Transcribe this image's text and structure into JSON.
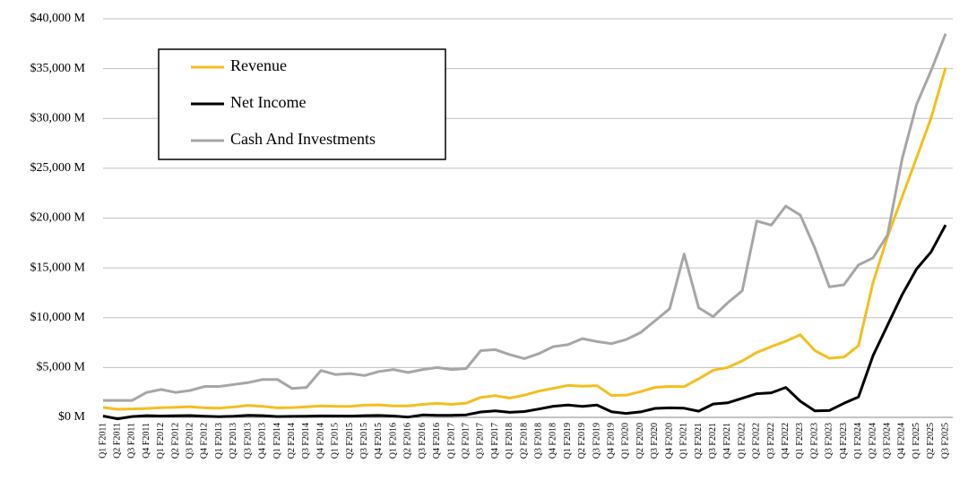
{
  "chart_data": {
    "type": "line",
    "categories": [
      "Q1 F2011",
      "Q2 F2011",
      "Q3 F2011",
      "Q4 F2011",
      "Q1 F2012",
      "Q2 F2012",
      "Q3 F2012",
      "Q4 F2012",
      "Q1 F2013",
      "Q2 F2013",
      "Q3 F2013",
      "Q4 F2013",
      "Q1 F2014",
      "Q2 F2014",
      "Q3 F2014",
      "Q4 F2014",
      "Q1 F2015",
      "Q2 F2015",
      "Q3 F2015",
      "Q4 F2015",
      "Q1 F2016",
      "Q2 F2016",
      "Q3 F2016",
      "Q4 F2016",
      "Q1 F2017",
      "Q2 F2017",
      "Q3 F2017",
      "Q4 F2017",
      "Q1 F2018",
      "Q2 F2018",
      "Q3 F2018",
      "Q4 F2018",
      "Q1 F2019",
      "Q2 F2019",
      "Q3 F2019",
      "Q4 F2019",
      "Q1 F2020",
      "Q2 F2020",
      "Q3 F2020",
      "Q4 F2020",
      "Q1 F2021",
      "Q2 F2021",
      "Q3 F2021",
      "Q4 F2021",
      "Q1 F2022",
      "Q2 F2022",
      "Q3 F2022",
      "Q4 F2022",
      "Q1 F2023",
      "Q2 F2023",
      "Q3 F2023",
      "Q4 F2023",
      "Q1 F2024",
      "Q2 F2024",
      "Q3 F2024",
      "Q4 F2024",
      "Q1 F2025",
      "Q2 F2025",
      "Q3 F2025"
    ],
    "series": [
      {
        "name": "Revenue",
        "color": "#f5be1e",
        "values": [
          1002,
          811,
          844,
          886,
          962,
          1017,
          1066,
          954,
          924,
          1044,
          1204,
          1107,
          954,
          977,
          1054,
          1144,
          1103,
          1103,
          1225,
          1251,
          1151,
          1153,
          1305,
          1401,
          1305,
          1428,
          2004,
          2173,
          1937,
          2230,
          2636,
          2911,
          3207,
          3123,
          3181,
          2205,
          2220,
          2579,
          3014,
          3105,
          3080,
          3866,
          4726,
          5003,
          5661,
          6507,
          7103,
          7643,
          8288,
          6704,
          5931,
          6051,
          7192,
          13507,
          18120,
          22103,
          26044,
          30040,
          35082
        ]
      },
      {
        "name": "Net Income",
        "color": "#000000",
        "values": [
          138,
          -141,
          84,
          172,
          135,
          152,
          178,
          116,
          60,
          119,
          209,
          174,
          78,
          96,
          118,
          147,
          137,
          128,
          173,
          193,
          134,
          26,
          246,
          207,
          208,
          253,
          542,
          655,
          507,
          583,
          838,
          1118,
          1244,
          1101,
          1230,
          567,
          394,
          552,
          899,
          950,
          917,
          622,
          1336,
          1457,
          1912,
          2374,
          2464,
          3003,
          1618,
          656,
          680,
          1414,
          2043,
          6188,
          9243,
          12285,
          14881,
          16599,
          19309
        ]
      },
      {
        "name": "Cash And Investments",
        "color": "#a6a6a6",
        "values": [
          1700,
          1700,
          1700,
          2500,
          2800,
          2500,
          2700,
          3100,
          3100,
          3300,
          3500,
          3800,
          3800,
          2900,
          3000,
          4700,
          4300,
          4400,
          4200,
          4600,
          4800,
          4500,
          4800,
          5000,
          4800,
          4900,
          6700,
          6800,
          6300,
          5900,
          6400,
          7100,
          7300,
          7900,
          7600,
          7400,
          7800,
          8500,
          9700,
          10900,
          16400,
          11000,
          10100,
          11500,
          12700,
          19700,
          19300,
          21200,
          20300,
          17000,
          13100,
          13300,
          15300,
          16000,
          18300,
          25900,
          31400,
          34800,
          38500
        ]
      }
    ],
    "ylim": [
      0,
      40000
    ],
    "yticks": [
      {
        "value": 0,
        "label": "$0 M"
      },
      {
        "value": 5000,
        "label": "$5,000 M"
      },
      {
        "value": 10000,
        "label": "$10,000 M"
      },
      {
        "value": 15000,
        "label": "$15,000 M"
      },
      {
        "value": 20000,
        "label": "$20,000 M"
      },
      {
        "value": 25000,
        "label": "$25,000 M"
      },
      {
        "value": 30000,
        "label": "$30,000 M"
      },
      {
        "value": 35000,
        "label": "$35,000 M"
      },
      {
        "value": 40000,
        "label": "$40,000 M"
      }
    ],
    "grid": true,
    "legend": "upper left"
  }
}
